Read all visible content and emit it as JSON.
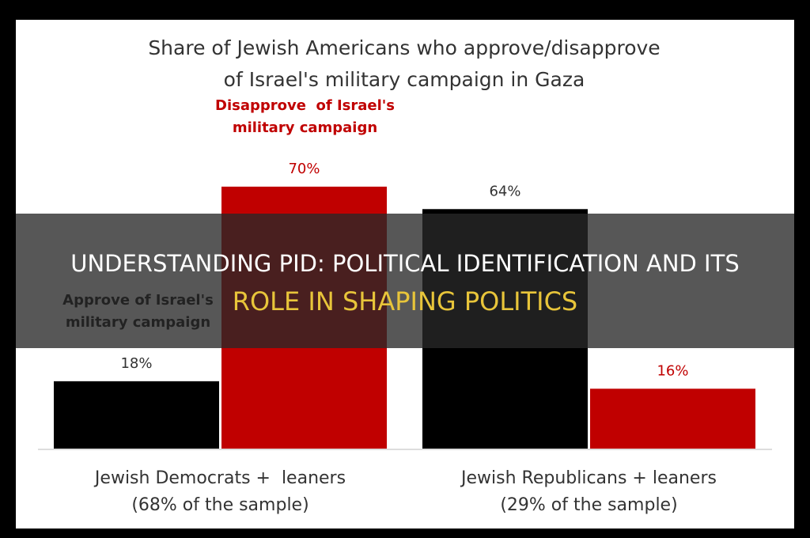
{
  "chart_data": {
    "type": "bar",
    "title": [
      "Share of Jewish Americans who approve/disapprove",
      "of Israel's military campaign in Gaza"
    ],
    "categories": [
      [
        "Jewish Democrats +  leaners",
        "(68% of the sample)"
      ],
      [
        "Jewish Republicans + leaners",
        "(29% of the sample)"
      ]
    ],
    "series": [
      {
        "name": [
          "Approve of Israel's",
          "military campaign"
        ],
        "color": "#000000",
        "values": [
          18,
          64
        ],
        "value_labels": [
          "18%",
          "64%"
        ]
      },
      {
        "name": [
          "Disapprove  of Israel's",
          "military campaign"
        ],
        "color": "#c00000",
        "values": [
          70,
          16
        ],
        "value_labels": [
          "70%",
          "16%"
        ]
      }
    ]
  },
  "overlay": [
    "UNDERSTANDING PID: POLITICAL IDENTIFICATION AND ITS",
    "ROLE IN SHAPING POLITICS"
  ]
}
